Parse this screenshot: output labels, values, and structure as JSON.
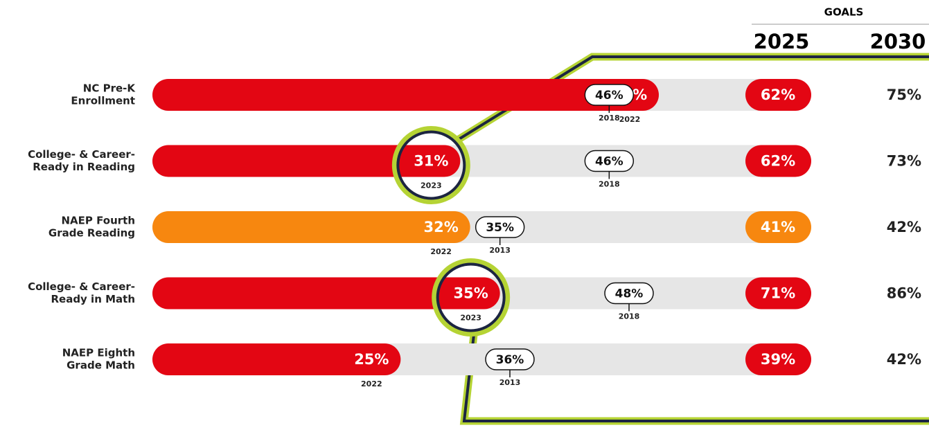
{
  "chart_data": {
    "type": "bullet",
    "categories": [
      [
        "NC Pre-K",
        "Enrollment"
      ],
      [
        "College- & Career-",
        "Ready in Reading"
      ],
      [
        "NAEP Fourth",
        "Grade Reading"
      ],
      [
        "College- & Career-",
        "Ready in Math"
      ],
      [
        "NAEP Eighth",
        "Grade Math"
      ]
    ],
    "xlim": [
      0,
      60
    ],
    "track_color": "#e6e6e6",
    "current": {
      "values": [
        51,
        31,
        32,
        35,
        25
      ],
      "value_labels": [
        "51%",
        "31%",
        "32%",
        "35%",
        "25%"
      ],
      "years": [
        "2022",
        "2023",
        "2022",
        "2023",
        "2022"
      ],
      "colors": [
        "#e30613",
        "#e30613",
        "#f7870f",
        "#e30613",
        "#e30613"
      ]
    },
    "baseline": {
      "values": [
        46,
        46,
        35,
        48,
        36
      ],
      "value_labels": [
        "46%",
        "46%",
        "35%",
        "48%",
        "36%"
      ],
      "years": [
        "2018",
        "2018",
        "2013",
        "2018",
        "2013"
      ]
    },
    "highlight": [
      1,
      3
    ],
    "goals": {
      "title": "GOALS",
      "columns": [
        "2025",
        "2030"
      ],
      "first": {
        "values": [
          62,
          62,
          41,
          71,
          39
        ],
        "value_labels": [
          "62%",
          "62%",
          "41%",
          "71%",
          "39%"
        ],
        "colors": [
          "#e30613",
          "#e30613",
          "#f7870f",
          "#e30613",
          "#e30613"
        ]
      },
      "second": {
        "values": [
          75,
          73,
          42,
          86,
          42
        ],
        "value_labels": [
          "75%",
          "73%",
          "42%",
          "86%",
          "42%"
        ]
      }
    }
  }
}
